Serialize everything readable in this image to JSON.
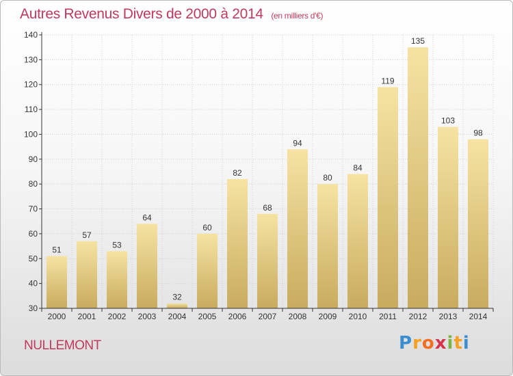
{
  "header": {
    "title": "Autres Revenus Divers de 2000 à 2014",
    "subtitle": "(en milliers d'€)"
  },
  "footer": {
    "location": "NULLEMONT",
    "brand": [
      "P",
      "r",
      "o",
      "x",
      "i",
      "t",
      "i"
    ]
  },
  "colors": {
    "title": "#c0395e",
    "bar_light": "#f6e3a3",
    "bar_dark": "#c8ab5e",
    "axis": "#333333"
  },
  "chart_data": {
    "type": "bar",
    "categories": [
      "2000",
      "2001",
      "2002",
      "2003",
      "2004",
      "2005",
      "2006",
      "2007",
      "2008",
      "2009",
      "2010",
      "2011",
      "2012",
      "2013",
      "2014"
    ],
    "values": [
      51,
      57,
      53,
      64,
      32,
      60,
      82,
      68,
      94,
      80,
      84,
      119,
      135,
      103,
      98
    ],
    "ylim": [
      30,
      140
    ],
    "yticks": [
      30,
      40,
      50,
      60,
      70,
      80,
      90,
      100,
      110,
      120,
      130,
      140
    ],
    "grid": true,
    "data_labels": true
  }
}
